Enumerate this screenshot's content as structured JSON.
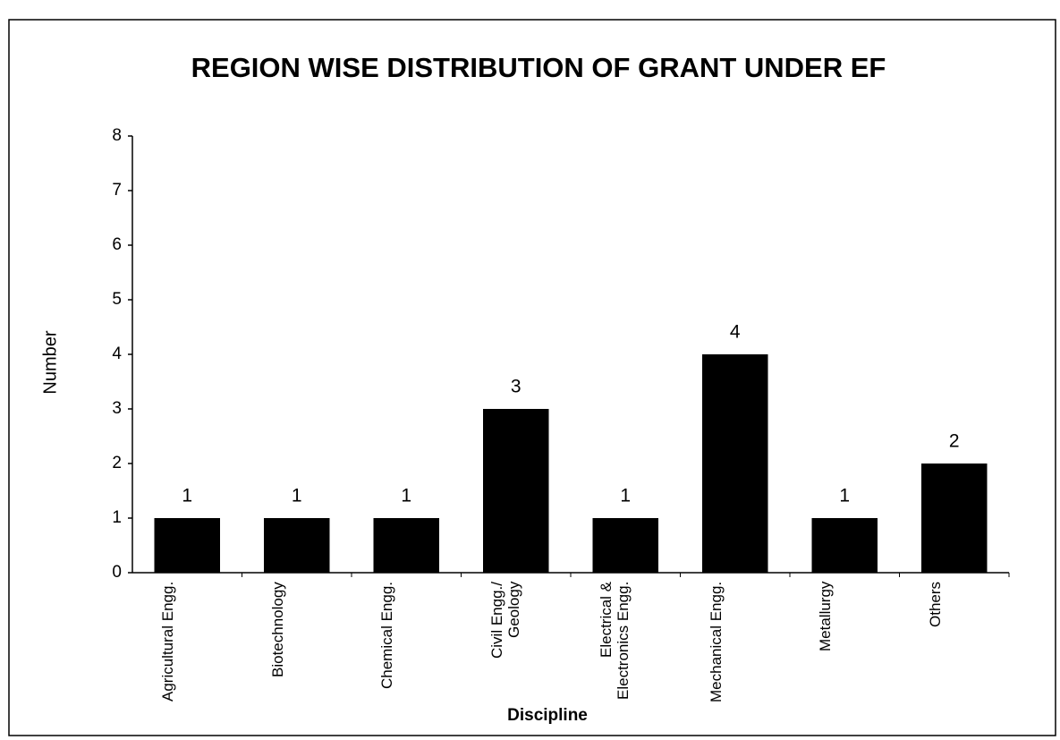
{
  "chart_data": {
    "type": "bar",
    "title": "REGION WISE DISTRIBUTION OF GRANT UNDER EF",
    "x_label": "Discipline",
    "y_label": "Number",
    "categories": [
      "Agricultural Engg.",
      "Biotechnology",
      "Chemical Engg.",
      "Civil Engg./ Geology",
      "Electrical & Electronics Engg.",
      "Mechanical Engg.",
      "Metallurgy",
      "Others"
    ],
    "values": [
      1,
      1,
      1,
      3,
      1,
      4,
      1,
      2
    ],
    "color": "#000000",
    "ylim": [
      0,
      8
    ],
    "yticks": [
      0,
      1,
      2,
      3,
      4,
      5,
      6,
      7,
      8
    ],
    "grid": false
  }
}
